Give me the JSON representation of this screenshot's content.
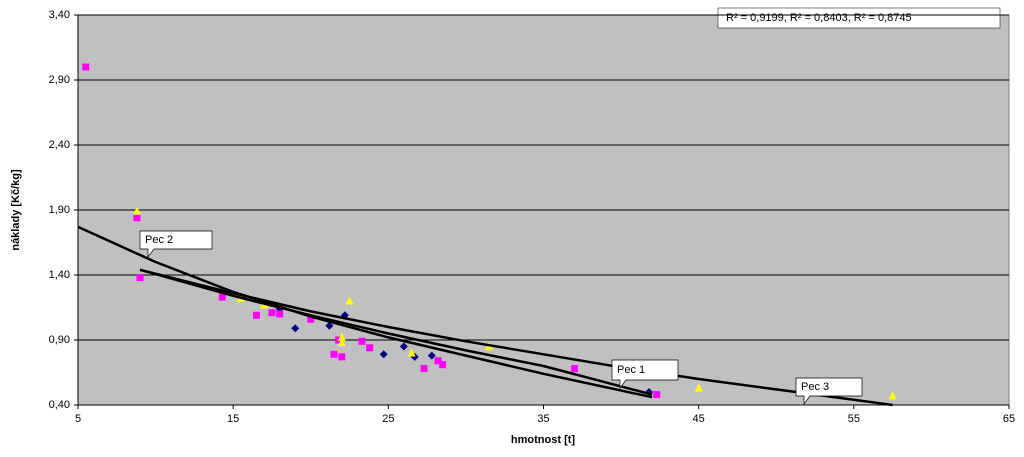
{
  "chart_data": {
    "type": "scatter",
    "annotation": "R² = 0,9199, R² = 0,8403, R² = 0,8745",
    "x_label": "hmotnost [t]",
    "y_label": "náklady [Kč/kg]",
    "xlim": [
      5,
      65
    ],
    "xticks": [
      5,
      15,
      25,
      35,
      45,
      55,
      65
    ],
    "ylim": [
      0.4,
      3.4
    ],
    "yticks": [
      {
        "value": 0.4,
        "label": "0,40"
      },
      {
        "value": 0.9,
        "label": "0,90"
      },
      {
        "value": 1.4,
        "label": "1,40"
      },
      {
        "value": 1.9,
        "label": "1,90"
      },
      {
        "value": 2.4,
        "label": "2,40"
      },
      {
        "value": 2.9,
        "label": "2,90"
      },
      {
        "value": 3.4,
        "label": "3,40"
      }
    ],
    "grid": true,
    "series": [
      {
        "color": "#000080",
        "marker": "diamond",
        "x": [
          18,
          19,
          21.2,
          22.2,
          24.7,
          26,
          26.7,
          27.8,
          41.8
        ],
        "y": [
          1.14,
          0.99,
          1.01,
          1.09,
          0.79,
          0.85,
          0.77,
          0.78,
          0.5
        ]
      },
      {
        "color": "#ff00ff",
        "marker": "square",
        "x": [
          5.5,
          8.8,
          9,
          14.3,
          16.5,
          17.5,
          18,
          20,
          21.5,
          21.8,
          22,
          23.3,
          23.8,
          27.3,
          28.2,
          28.5,
          37,
          42.3
        ],
        "y": [
          3.0,
          1.84,
          1.38,
          1.23,
          1.09,
          1.11,
          1.1,
          1.06,
          0.79,
          0.9,
          0.77,
          0.89,
          0.84,
          0.68,
          0.74,
          0.71,
          0.68,
          0.48
        ]
      },
      {
        "color": "#ffff00",
        "marker": "triangle",
        "x": [
          8.8,
          15.5,
          17,
          22,
          22,
          22.5,
          26.5,
          31.5,
          45,
          57.5
        ],
        "y": [
          1.89,
          1.22,
          1.17,
          0.92,
          0.88,
          1.2,
          0.8,
          0.85,
          0.53,
          0.47
        ]
      }
    ],
    "trendlines": [
      {
        "label": "Pec 2",
        "x": [
          5,
          10,
          15,
          20,
          25,
          30,
          35,
          42
        ],
        "y": [
          1.77,
          1.5,
          1.27,
          1.08,
          0.92,
          0.78,
          0.64,
          0.46
        ]
      },
      {
        "label": "Pec 1",
        "x": [
          9,
          15,
          20,
          25,
          30,
          35,
          42
        ],
        "y": [
          1.44,
          1.24,
          1.09,
          0.95,
          0.82,
          0.7,
          0.48
        ]
      },
      {
        "label": "Pec 3",
        "x": [
          9,
          15,
          20,
          25,
          30,
          35,
          40,
          45,
          50,
          57.5
        ],
        "y": [
          1.44,
          1.26,
          1.12,
          1.0,
          0.89,
          0.79,
          0.69,
          0.6,
          0.52,
          0.4
        ]
      }
    ]
  }
}
